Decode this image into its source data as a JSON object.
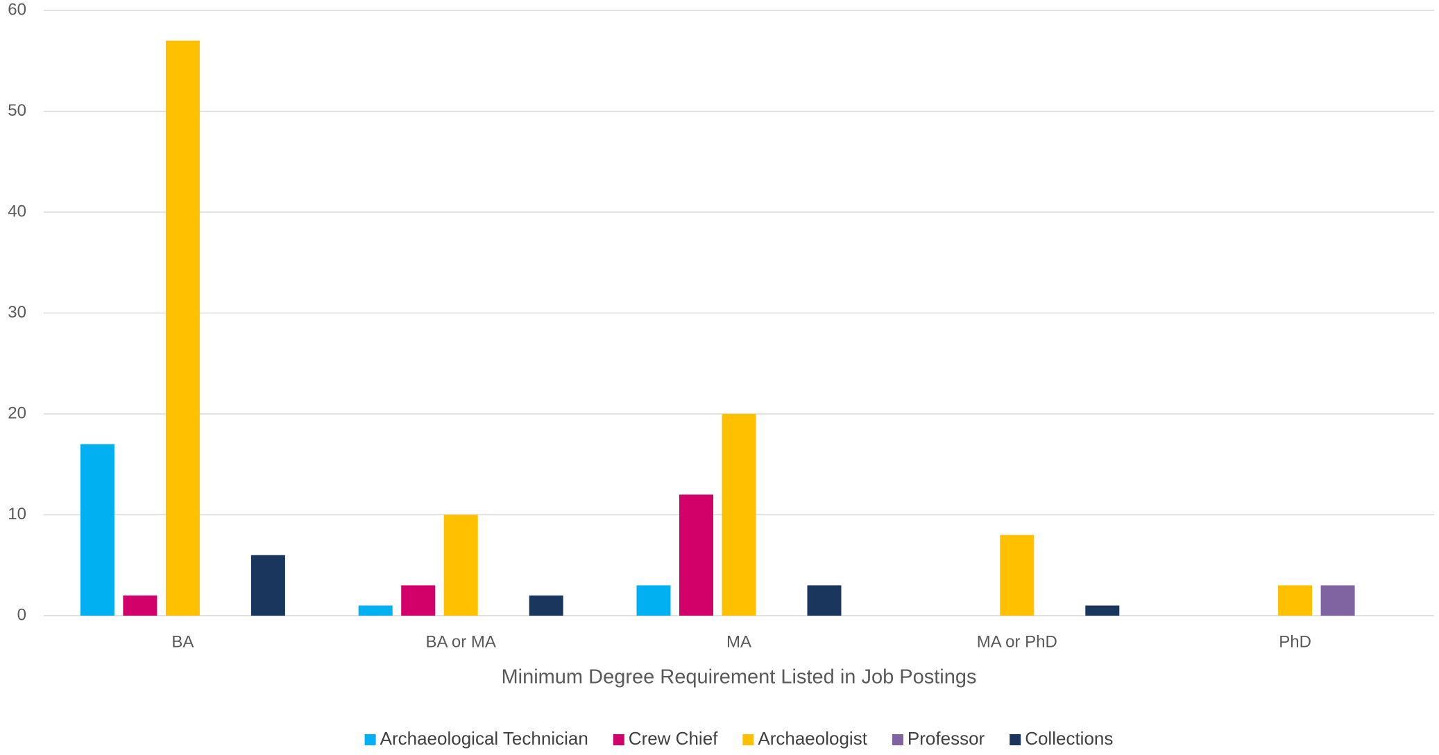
{
  "chart_data": {
    "type": "bar",
    "x_label": "Minimum Degree Requirement Listed in Job Postings",
    "categories": [
      "BA",
      "BA or MA",
      "MA",
      "MA or PhD",
      "PhD"
    ],
    "series": [
      {
        "name": "Archaeological Technician",
        "color": "#00b0f0",
        "values": [
          17,
          1,
          3,
          0,
          0
        ]
      },
      {
        "name": "Crew Chief",
        "color": "#d20069",
        "values": [
          2,
          3,
          12,
          0,
          0
        ]
      },
      {
        "name": "Archaeologist",
        "color": "#ffc000",
        "values": [
          57,
          10,
          20,
          8,
          3
        ]
      },
      {
        "name": "Professor",
        "color": "#8064a2",
        "values": [
          0,
          0,
          0,
          0,
          3
        ]
      },
      {
        "name": "Collections",
        "color": "#1b365d",
        "values": [
          6,
          2,
          3,
          1,
          0
        ]
      }
    ],
    "ylim": [
      0,
      60
    ],
    "yticks": [
      0,
      10,
      20,
      30,
      40,
      50,
      60
    ],
    "grid": true,
    "legend": "bottom"
  }
}
